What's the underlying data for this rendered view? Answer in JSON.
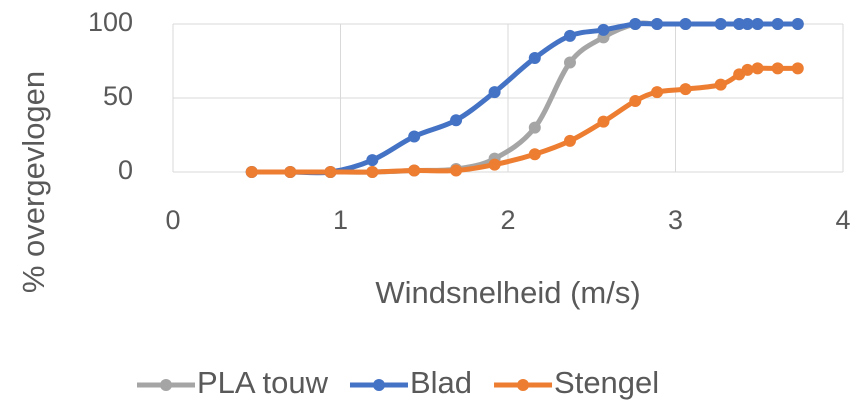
{
  "chart_data": {
    "type": "line",
    "x_label": "Windsnelheid (m/s)",
    "y_label": "% overgevlogen",
    "x": [
      0.47,
      0.7,
      0.94,
      1.19,
      1.44,
      1.69,
      1.92,
      2.16,
      2.37,
      2.57,
      2.76,
      2.89,
      3.06,
      3.27,
      3.38,
      3.43,
      3.49,
      3.61,
      3.73
    ],
    "series": [
      {
        "name": "PLA touw",
        "color": "#a5a5a5",
        "values": [
          0,
          0,
          0,
          0,
          1,
          2,
          9,
          30,
          74,
          91,
          100,
          100,
          100,
          100,
          100,
          100,
          100,
          100,
          100
        ]
      },
      {
        "name": "Blad",
        "color": "#4472c4",
        "values": [
          0,
          0,
          0,
          8,
          24,
          35,
          54,
          77,
          92,
          96,
          100,
          100,
          100,
          100,
          100,
          100,
          100,
          100,
          100
        ]
      },
      {
        "name": "Stengel",
        "color": "#ed7d31",
        "values": [
          0,
          0,
          0,
          0,
          1,
          1,
          5,
          12,
          21,
          34,
          48,
          54,
          56,
          59,
          66,
          69,
          70,
          70,
          70
        ]
      }
    ],
    "xlim": [
      0,
      4
    ],
    "xticks": [
      0,
      1,
      2,
      3,
      4
    ],
    "ylim": [
      0,
      100
    ],
    "yticks": [
      0,
      50,
      100
    ],
    "grid": true,
    "legend": "bottom"
  }
}
